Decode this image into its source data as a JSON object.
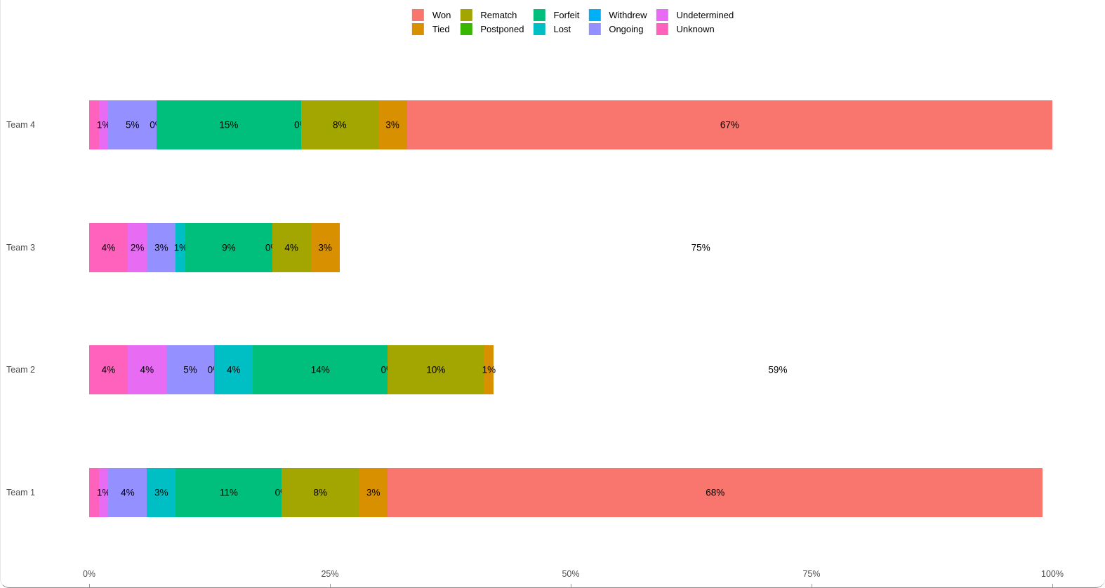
{
  "colors": {
    "Won": "#F8766D",
    "Tied": "#D89000",
    "Rematch": "#A3A500",
    "Postponed": "#39B600",
    "Forfeit": "#00BF7D",
    "Lost": "#00BFC4",
    "Withdrew": "#00B0F6",
    "Ongoing": "#9590FF",
    "Undetermined": "#E76BF3",
    "Unknown": "#FF62BC"
  },
  "legend": {
    "columns": [
      {
        "items": [
          {
            "label": "Won",
            "color": "#F8766D"
          },
          {
            "label": "Tied",
            "color": "#D89000"
          }
        ]
      },
      {
        "items": [
          {
            "label": "Rematch",
            "color": "#A3A500"
          },
          {
            "label": "Postponed",
            "color": "#39B600"
          }
        ]
      },
      {
        "items": [
          {
            "label": "Forfeit",
            "color": "#00BF7D"
          },
          {
            "label": "Lost",
            "color": "#00BFC4"
          }
        ]
      },
      {
        "items": [
          {
            "label": "Withdrew",
            "color": "#00B0F6"
          },
          {
            "label": "Ongoing",
            "color": "#9590FF"
          }
        ]
      },
      {
        "items": [
          {
            "label": "Undetermined",
            "color": "#E76BF3"
          },
          {
            "label": "Unknown",
            "color": "#FF62BC"
          }
        ]
      }
    ]
  },
  "rows": [
    {
      "team": "Team 4",
      "segments": [
        {
          "category": "Unknown",
          "value": 1,
          "label": null
        },
        {
          "category": "Undetermined",
          "value": 1,
          "label": "1%"
        },
        {
          "category": "Ongoing",
          "value": 5,
          "label": "5%"
        },
        {
          "category": "Withdrew",
          "value": 0,
          "label": "0%"
        },
        {
          "category": "Lost",
          "value": 0,
          "label": null
        },
        {
          "category": "Forfeit",
          "value": 15,
          "label": "15%"
        },
        {
          "category": "Postponed",
          "value": 0,
          "label": "0%"
        },
        {
          "category": "Rematch",
          "value": 8,
          "label": "8%"
        },
        {
          "category": "Tied",
          "value": 3,
          "label": "3%"
        },
        {
          "category": "Won",
          "value": 67,
          "label": "67%"
        }
      ]
    },
    {
      "team": "Team 3",
      "segments": [
        {
          "category": "Unknown",
          "value": 4,
          "label": "4%"
        },
        {
          "category": "Undetermined",
          "value": 2,
          "label": "2%"
        },
        {
          "category": "Ongoing",
          "value": 3,
          "label": "3%"
        },
        {
          "category": "Withdrew",
          "value": 0,
          "label": null
        },
        {
          "category": "Lost",
          "value": 1,
          "label": "1%"
        },
        {
          "category": "Forfeit",
          "value": 9,
          "label": "9%"
        },
        {
          "category": "Postponed",
          "value": 0,
          "label": "0%"
        },
        {
          "category": "Rematch",
          "value": 4,
          "label": "4%"
        },
        {
          "category": "Tied",
          "value": 3,
          "label": "3%"
        },
        {
          "category": "Won",
          "value": 75,
          "label": "75%",
          "hidden_fill": true
        }
      ]
    },
    {
      "team": "Team 2",
      "segments": [
        {
          "category": "Unknown",
          "value": 4,
          "label": "4%"
        },
        {
          "category": "Undetermined",
          "value": 4,
          "label": "4%"
        },
        {
          "category": "Ongoing",
          "value": 5,
          "label": "5%"
        },
        {
          "category": "Withdrew",
          "value": 0,
          "label": "0%"
        },
        {
          "category": "Lost",
          "value": 4,
          "label": "4%"
        },
        {
          "category": "Forfeit",
          "value": 14,
          "label": "14%"
        },
        {
          "category": "Postponed",
          "value": 0,
          "label": "0%"
        },
        {
          "category": "Rematch",
          "value": 10,
          "label": "10%"
        },
        {
          "category": "Tied",
          "value": 1,
          "label": "1%"
        },
        {
          "category": "Won",
          "value": 59,
          "label": "59%",
          "hidden_fill": true
        }
      ]
    },
    {
      "team": "Team 1",
      "segments": [
        {
          "category": "Unknown",
          "value": 1,
          "label": null
        },
        {
          "category": "Undetermined",
          "value": 1,
          "label": "1%"
        },
        {
          "category": "Ongoing",
          "value": 4,
          "label": "4%"
        },
        {
          "category": "Withdrew",
          "value": 0,
          "label": null
        },
        {
          "category": "Lost",
          "value": 3,
          "label": "3%"
        },
        {
          "category": "Forfeit",
          "value": 11,
          "label": "11%"
        },
        {
          "category": "Postponed",
          "value": 0,
          "label": "0%"
        },
        {
          "category": "Rematch",
          "value": 8,
          "label": "8%"
        },
        {
          "category": "Tied",
          "value": 3,
          "label": "3%"
        },
        {
          "category": "Won",
          "value": 68,
          "label": "68%"
        }
      ]
    }
  ],
  "x_axis": {
    "ticks": [
      {
        "label": "0%",
        "pct": 0
      },
      {
        "label": "25%",
        "pct": 25
      },
      {
        "label": "50%",
        "pct": 50
      },
      {
        "label": "75%",
        "pct": 75
      },
      {
        "label": "100%",
        "pct": 100
      }
    ]
  },
  "chart_data": {
    "type": "bar",
    "orientation": "horizontal",
    "stacked": true,
    "categories": [
      "Team 1",
      "Team 2",
      "Team 3",
      "Team 4"
    ],
    "series": [
      {
        "name": "Unknown",
        "values": [
          1,
          4,
          4,
          1
        ]
      },
      {
        "name": "Undetermined",
        "values": [
          1,
          4,
          2,
          1
        ]
      },
      {
        "name": "Ongoing",
        "values": [
          4,
          5,
          3,
          5
        ]
      },
      {
        "name": "Withdrew",
        "values": [
          0,
          0,
          0,
          0
        ]
      },
      {
        "name": "Lost",
        "values": [
          3,
          4,
          1,
          0
        ]
      },
      {
        "name": "Forfeit",
        "values": [
          11,
          14,
          9,
          15
        ]
      },
      {
        "name": "Postponed",
        "values": [
          0,
          0,
          0,
          0
        ]
      },
      {
        "name": "Rematch",
        "values": [
          8,
          10,
          4,
          8
        ]
      },
      {
        "name": "Tied",
        "values": [
          3,
          1,
          3,
          3
        ]
      },
      {
        "name": "Won",
        "values": [
          68,
          59,
          75,
          67
        ]
      }
    ],
    "values_unit": "%",
    "xlim": [
      0,
      100
    ],
    "x_tick_labels": [
      "0%",
      "25%",
      "50%",
      "75%",
      "100%"
    ],
    "y_axis_order_top_to_bottom": [
      "Team 4",
      "Team 3",
      "Team 2",
      "Team 1"
    ],
    "legend_order": [
      "Won",
      "Tied",
      "Rematch",
      "Postponed",
      "Forfeit",
      "Lost",
      "Withdrew",
      "Ongoing",
      "Undetermined",
      "Unknown"
    ],
    "legend_position": "top-center",
    "grid": false,
    "notes": "Won segments for Team 2 and Team 3 are drawn unfilled (white) but their value labels are shown at the segment centers"
  }
}
